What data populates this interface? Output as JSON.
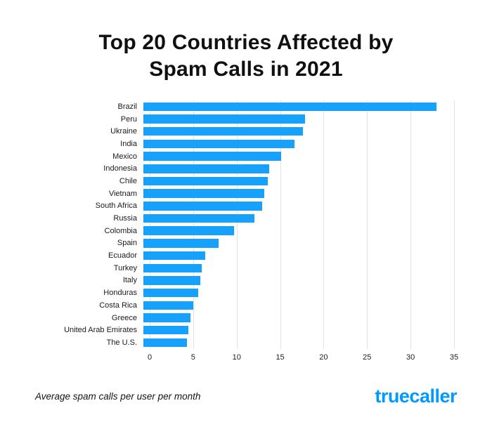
{
  "title": {
    "line1": "Top 20 Countries Affected by",
    "line2": "Spam Calls in 2021"
  },
  "footnote": "Average spam calls per user per month",
  "brand": {
    "name": "truecaller",
    "color": "#0099ff"
  },
  "chart_data": {
    "type": "bar",
    "orientation": "horizontal",
    "title": "Top 20 Countries Affected by Spam Calls in 2021",
    "xlabel": "",
    "ylabel": "",
    "xlim": [
      0,
      35
    ],
    "xticks": [
      0,
      5,
      10,
      15,
      20,
      25,
      30,
      35
    ],
    "grid": true,
    "bar_color": "#16a2fc",
    "categories": [
      "Brazil",
      "Peru",
      "Ukraine",
      "India",
      "Mexico",
      "Indonesia",
      "Chile",
      "Vietnam",
      "South Africa",
      "Russia",
      "Colombia",
      "Spain",
      "Ecuador",
      "Turkey",
      "Italy",
      "Honduras",
      "Costa Rica",
      "Greece",
      "United Arab Emirates",
      "The U.S."
    ],
    "values": [
      33,
      18.2,
      18,
      17,
      15.5,
      14.2,
      14,
      13.6,
      13.4,
      12.5,
      10.2,
      8.5,
      7,
      6.6,
      6.4,
      6.2,
      5.6,
      5.3,
      5.1,
      4.9
    ]
  }
}
